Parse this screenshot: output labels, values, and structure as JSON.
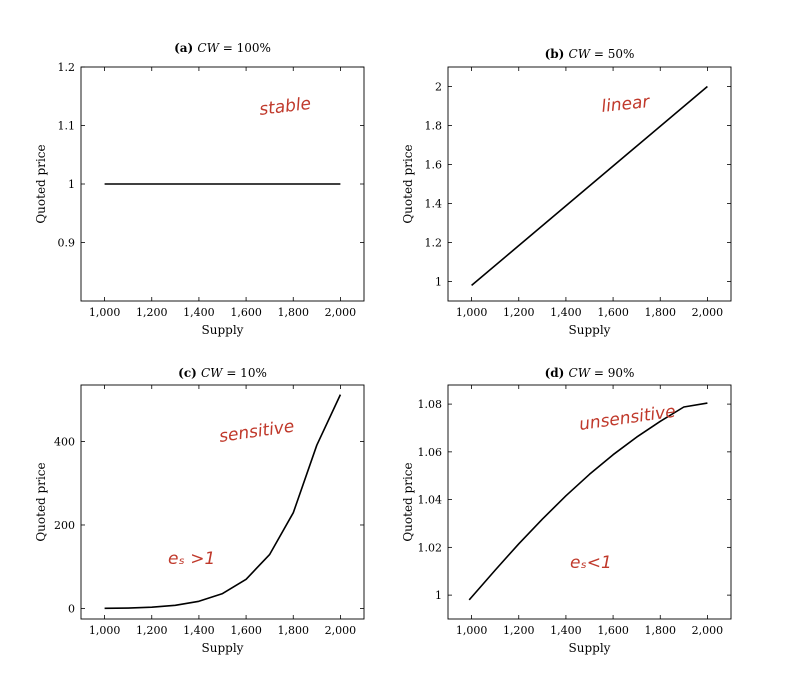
{
  "chart_data": [
    {
      "type": "line",
      "panel_label": "(a)",
      "title_var": "CW",
      "title_value": "= 100%",
      "xlabel": "Supply",
      "ylabel": "Quoted price",
      "xlim": [
        900,
        2100
      ],
      "ylim": [
        0.8,
        1.2
      ],
      "xticks": [
        1000,
        1200,
        1400,
        1600,
        1800,
        2000
      ],
      "xtick_labels": [
        "1,000",
        "1,200",
        "1,400",
        "1,600",
        "1,800",
        "2,000"
      ],
      "yticks": [
        0.9,
        1,
        1.1,
        1.2
      ],
      "ytick_labels": [
        "0.9",
        "1",
        "1.1",
        "1.2"
      ],
      "x": [
        1000,
        2000
      ],
      "y": [
        1,
        1
      ],
      "annotations": [
        "stable"
      ]
    },
    {
      "type": "line",
      "panel_label": "(b)",
      "title_var": "CW",
      "title_value": "= 50%",
      "xlabel": "Supply",
      "ylabel": "Quoted price",
      "xlim": [
        900,
        2100
      ],
      "ylim": [
        0.9,
        2.1
      ],
      "xticks": [
        1000,
        1200,
        1400,
        1600,
        1800,
        2000
      ],
      "xtick_labels": [
        "1,000",
        "1,200",
        "1,400",
        "1,600",
        "1,800",
        "2,000"
      ],
      "yticks": [
        1,
        1.2,
        1.4,
        1.6,
        1.8,
        2
      ],
      "ytick_labels": [
        "1",
        "1.2",
        "1.4",
        "1.6",
        "1.8",
        "2"
      ],
      "x": [
        1000,
        2000
      ],
      "y": [
        0.98,
        2
      ],
      "annotations": [
        "linear"
      ]
    },
    {
      "type": "line",
      "panel_label": "(c)",
      "title_var": "CW",
      "title_value": "= 10%",
      "xlabel": "Supply",
      "ylabel": "Quoted price",
      "xlim": [
        900,
        2100
      ],
      "ylim": [
        -25,
        535
      ],
      "xticks": [
        1000,
        1200,
        1400,
        1600,
        1800,
        2000
      ],
      "xtick_labels": [
        "1,000",
        "1,200",
        "1,400",
        "1,600",
        "1,800",
        "2,000"
      ],
      "yticks": [
        0,
        200,
        400
      ],
      "ytick_labels": [
        "0",
        "200",
        "400"
      ],
      "x": [
        1000,
        1100,
        1200,
        1300,
        1400,
        1500,
        1600,
        1700,
        1800,
        1900,
        2000
      ],
      "y": [
        0.5,
        1.2,
        3.2,
        7.8,
        17.3,
        35.9,
        70.1,
        129.7,
        229.5,
        391,
        512
      ],
      "annotations": [
        "sensitive",
        "eₛ >1"
      ]
    },
    {
      "type": "line",
      "panel_label": "(d)",
      "title_var": "CW",
      "title_value": "= 90%",
      "xlabel": "Supply",
      "ylabel": "Quoted price",
      "xlim": [
        900,
        2100
      ],
      "ylim": [
        0.99,
        1.088
      ],
      "xticks": [
        1000,
        1200,
        1400,
        1600,
        1800,
        2000
      ],
      "xtick_labels": [
        "1,000",
        "1,200",
        "1,400",
        "1,600",
        "1,800",
        "2,000"
      ],
      "yticks": [
        1,
        1.02,
        1.04,
        1.06,
        1.08
      ],
      "ytick_labels": [
        "1",
        "1.02",
        "1.04",
        "1.06",
        "1.08"
      ],
      "x": [
        990,
        1100,
        1200,
        1300,
        1400,
        1500,
        1600,
        1700,
        1800,
        1900,
        2000
      ],
      "y": [
        0.998,
        1.0105,
        1.0215,
        1.0318,
        1.0416,
        1.0506,
        1.0588,
        1.0662,
        1.0728,
        1.0788,
        1.0804
      ],
      "annotations": [
        "unsensitive",
        "eₛ<1"
      ]
    }
  ]
}
